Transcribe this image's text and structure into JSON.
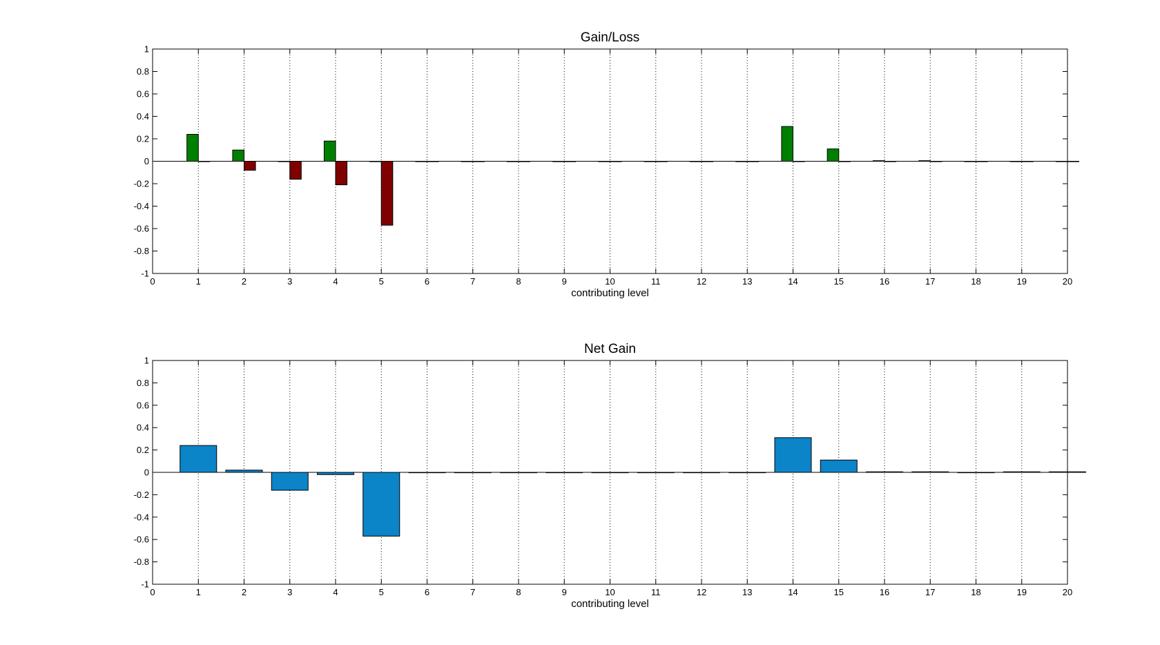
{
  "chart_data": [
    {
      "type": "bar",
      "title": "Gain/Loss",
      "xlabel": "contributing level",
      "ylabel": "",
      "xlim": [
        0,
        20
      ],
      "ylim": [
        -1,
        1
      ],
      "xticks": [
        "0",
        "1",
        "2",
        "3",
        "4",
        "5",
        "6",
        "7",
        "8",
        "9",
        "10",
        "11",
        "12",
        "13",
        "14",
        "15",
        "16",
        "17",
        "18",
        "19",
        "20"
      ],
      "yticks": [
        "-1",
        "-0.8",
        "-0.6",
        "-0.4",
        "-0.2",
        "0",
        "0.2",
        "0.4",
        "0.6",
        "0.8",
        "1"
      ],
      "grid": "x-dotted",
      "categories": [
        1,
        2,
        3,
        4,
        5,
        6,
        7,
        8,
        9,
        10,
        11,
        12,
        13,
        14,
        15,
        16,
        17,
        18,
        19,
        20
      ],
      "series": [
        {
          "color": "#008000",
          "values": [
            0.24,
            0.1,
            0,
            0.18,
            0,
            0,
            0,
            0,
            0,
            0,
            0,
            0,
            0,
            0.31,
            0.11,
            0.005,
            0.005,
            0,
            0,
            0
          ]
        },
        {
          "color": "#800000",
          "values": [
            0,
            -0.08,
            -0.16,
            -0.21,
            -0.57,
            0,
            0,
            0,
            0,
            0,
            0,
            0,
            0,
            0,
            0,
            0,
            0,
            0,
            0,
            0
          ]
        }
      ]
    },
    {
      "type": "bar",
      "title": "Net Gain",
      "xlabel": "contributing level",
      "ylabel": "",
      "xlim": [
        0,
        20
      ],
      "ylim": [
        -1,
        1
      ],
      "xticks": [
        "0",
        "1",
        "2",
        "3",
        "4",
        "5",
        "6",
        "7",
        "8",
        "9",
        "10",
        "11",
        "12",
        "13",
        "14",
        "15",
        "16",
        "17",
        "18",
        "19",
        "20"
      ],
      "yticks": [
        "-1",
        "-0.8",
        "-0.6",
        "-0.4",
        "-0.2",
        "0",
        "0.2",
        "0.4",
        "0.6",
        "0.8",
        "1"
      ],
      "grid": "x-dotted",
      "categories": [
        1,
        2,
        3,
        4,
        5,
        6,
        7,
        8,
        9,
        10,
        11,
        12,
        13,
        14,
        15,
        16,
        17,
        18,
        19,
        20
      ],
      "series": [
        {
          "color": "#0b84c8",
          "values": [
            0.24,
            0.02,
            -0.16,
            -0.02,
            -0.57,
            0,
            0,
            0,
            0,
            0,
            0,
            0,
            0,
            0.31,
            0.11,
            0.005,
            0.005,
            0,
            0.005,
            0.005
          ]
        }
      ]
    }
  ]
}
